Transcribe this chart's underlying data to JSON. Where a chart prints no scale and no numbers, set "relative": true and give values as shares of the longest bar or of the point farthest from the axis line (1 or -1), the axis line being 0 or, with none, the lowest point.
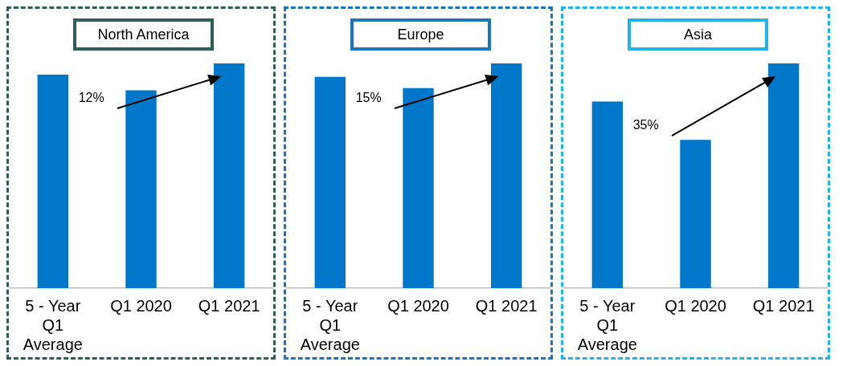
{
  "chart_data": [
    {
      "type": "bar",
      "title": "North America",
      "categories": [
        "5 - Year Q1 Average",
        "Q1 2020",
        "Q1 2021"
      ],
      "values": [
        0.95,
        0.88,
        1
      ],
      "color": "#0077c8",
      "relative": true,
      "annotations": [
        "12%"
      ]
    },
    {
      "type": "bar",
      "title": "Europe",
      "categories": [
        "5 - Year Q1 Average",
        "Q1 2020",
        "Q1 2021"
      ],
      "values": [
        0.94,
        0.89,
        1
      ],
      "color": "#0077c8",
      "relative": true,
      "annotations": [
        "15%"
      ]
    },
    {
      "type": "bar",
      "title": "Asia",
      "categories": [
        "5 - Year Q1 Average",
        "Q1 2020",
        "Q1 2021"
      ],
      "values": [
        0.83,
        0.66,
        1
      ],
      "color": "#0077c8",
      "relative": true,
      "annotations": [
        "35%"
      ]
    }
  ]
}
